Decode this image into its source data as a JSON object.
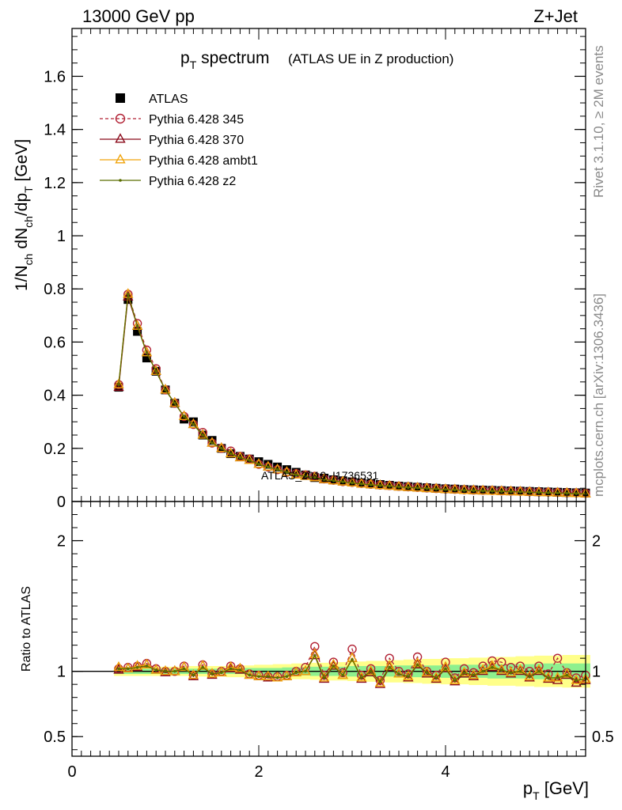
{
  "header": {
    "left": "13000 GeV pp",
    "right": "Z+Jet"
  },
  "side_labels": {
    "rivet": "Rivet 3.1.10, ≥ 2M events",
    "mcplots": "mcplots.cern.ch [arXiv:1306.3436]"
  },
  "watermark": "ATLAS_2019_I1736531",
  "chart_data": [
    {
      "type": "line",
      "panel": "main",
      "title_main": "p",
      "title_sub": "T",
      "title_rest": " spectrum",
      "title_note": "(ATLAS UE in Z production)",
      "ylabel_parts": {
        "a": "1/N",
        "a_sub": "ch",
        "b": " dN",
        "b_sub": "ch",
        "c": "/dp",
        "c_sub": "T",
        "d": " [GeV]"
      },
      "xlim": [
        0,
        5.5
      ],
      "ylim": [
        0,
        1.78
      ],
      "yticks": [
        0,
        0.2,
        0.4,
        0.6,
        0.8,
        1,
        1.2,
        1.4,
        1.6
      ],
      "ytick_labels": [
        "0",
        "0.2",
        "0.4",
        "0.6",
        "0.8",
        "1",
        "1.2",
        "1.4",
        "1.6"
      ],
      "x": [
        0.5,
        0.6,
        0.7,
        0.8,
        0.9,
        1.0,
        1.1,
        1.2,
        1.3,
        1.4,
        1.5,
        1.6,
        1.7,
        1.8,
        1.9,
        2.0,
        2.1,
        2.2,
        2.3,
        2.4,
        2.5,
        2.6,
        2.7,
        2.8,
        2.9,
        3.0,
        3.1,
        3.2,
        3.3,
        3.4,
        3.5,
        3.6,
        3.7,
        3.8,
        3.9,
        4.0,
        4.1,
        4.2,
        4.3,
        4.4,
        4.5,
        4.6,
        4.7,
        4.8,
        4.9,
        5.0,
        5.1,
        5.2,
        5.3,
        5.4,
        5.5
      ],
      "series": [
        {
          "name": "ATLAS",
          "marker": "square",
          "color": "#000000",
          "values": [
            0.43,
            0.76,
            0.64,
            0.54,
            0.49,
            0.42,
            0.37,
            0.31,
            0.3,
            0.25,
            0.23,
            0.2,
            0.18,
            0.17,
            0.16,
            0.15,
            0.14,
            0.13,
            0.12,
            0.11,
            0.1,
            0.09,
            0.088,
            0.082,
            0.078,
            0.074,
            0.07,
            0.067,
            0.064,
            0.061,
            0.058,
            0.056,
            0.054,
            0.052,
            0.05,
            0.048,
            0.047,
            0.045,
            0.044,
            0.043,
            0.042,
            0.041,
            0.04,
            0.039,
            0.038,
            0.037,
            0.036,
            0.035,
            0.034,
            0.033,
            0.032
          ]
        },
        {
          "name": "Pythia 6.428 345",
          "marker": "circle",
          "color": "#b22235",
          "dash": true,
          "values": [
            0.44,
            0.78,
            0.67,
            0.57,
            0.5,
            0.42,
            0.37,
            0.32,
            0.29,
            0.26,
            0.22,
            0.2,
            0.19,
            0.17,
            0.16,
            0.14,
            0.13,
            0.12,
            0.11,
            0.105,
            0.1,
            0.095,
            0.085,
            0.08,
            0.075,
            0.072,
            0.068,
            0.065,
            0.062,
            0.06,
            0.057,
            0.055,
            0.053,
            0.051,
            0.049,
            0.047,
            0.046,
            0.044,
            0.043,
            0.042,
            0.041,
            0.04,
            0.039,
            0.038,
            0.037,
            0.036,
            0.035,
            0.034,
            0.033,
            0.032,
            0.031
          ]
        },
        {
          "name": "Pythia 6.428 370",
          "marker": "triangle",
          "color": "#8b0a1a",
          "values": [
            0.43,
            0.77,
            0.66,
            0.56,
            0.49,
            0.42,
            0.37,
            0.32,
            0.29,
            0.25,
            0.22,
            0.2,
            0.18,
            0.165,
            0.155,
            0.14,
            0.13,
            0.12,
            0.11,
            0.1,
            0.095,
            0.09,
            0.082,
            0.078,
            0.074,
            0.07,
            0.066,
            0.063,
            0.06,
            0.058,
            0.055,
            0.053,
            0.051,
            0.049,
            0.047,
            0.045,
            0.044,
            0.042,
            0.041,
            0.04,
            0.039,
            0.038,
            0.037,
            0.036,
            0.035,
            0.034,
            0.033,
            0.032,
            0.031,
            0.03,
            0.029
          ]
        },
        {
          "name": "Pythia 6.428 ambt1",
          "marker": "triangle",
          "color": "#f0a30a",
          "values": [
            0.44,
            0.78,
            0.66,
            0.56,
            0.49,
            0.42,
            0.37,
            0.32,
            0.29,
            0.25,
            0.22,
            0.2,
            0.18,
            0.165,
            0.155,
            0.14,
            0.13,
            0.12,
            0.11,
            0.1,
            0.095,
            0.09,
            0.083,
            0.078,
            0.074,
            0.07,
            0.066,
            0.063,
            0.06,
            0.058,
            0.055,
            0.053,
            0.051,
            0.049,
            0.047,
            0.045,
            0.044,
            0.042,
            0.041,
            0.04,
            0.039,
            0.038,
            0.037,
            0.036,
            0.035,
            0.034,
            0.033,
            0.032,
            0.031,
            0.03,
            0.029
          ]
        },
        {
          "name": "Pythia 6.428 z2",
          "marker": "dot",
          "color": "#5a6e00",
          "values": [
            0.44,
            0.78,
            0.66,
            0.56,
            0.49,
            0.42,
            0.37,
            0.32,
            0.29,
            0.25,
            0.22,
            0.2,
            0.18,
            0.165,
            0.155,
            0.14,
            0.13,
            0.12,
            0.11,
            0.1,
            0.095,
            0.09,
            0.083,
            0.078,
            0.074,
            0.07,
            0.066,
            0.063,
            0.06,
            0.058,
            0.055,
            0.053,
            0.051,
            0.049,
            0.047,
            0.045,
            0.044,
            0.042,
            0.041,
            0.04,
            0.039,
            0.038,
            0.037,
            0.036,
            0.035,
            0.034,
            0.033,
            0.032,
            0.031,
            0.03,
            0.029
          ]
        }
      ]
    },
    {
      "type": "line",
      "panel": "ratio",
      "ylabel": "Ratio to ATLAS",
      "xlabel_main": "p",
      "xlabel_sub": "T",
      "xlabel_rest": " [GeV]",
      "xlim": [
        0,
        5.5
      ],
      "ylim": [
        0.35,
        2.3
      ],
      "xticks": [
        0,
        2,
        4
      ],
      "xtick_labels": [
        "0",
        "2",
        "4"
      ],
      "yticks": [
        0.5,
        1,
        2
      ],
      "ytick_labels": [
        "0.5",
        "1",
        "2"
      ],
      "band_stat": [
        0.02,
        0.02,
        0.02,
        0.02,
        0.02,
        0.02,
        0.02,
        0.02,
        0.02,
        0.02,
        0.02,
        0.02,
        0.02,
        0.02,
        0.025,
        0.025,
        0.025,
        0.025,
        0.03,
        0.03,
        0.03,
        0.035,
        0.035,
        0.035,
        0.035,
        0.04,
        0.04,
        0.04,
        0.04,
        0.04,
        0.045,
        0.045,
        0.045,
        0.045,
        0.045,
        0.05,
        0.05,
        0.05,
        0.05,
        0.05,
        0.055,
        0.055,
        0.055,
        0.055,
        0.055,
        0.06,
        0.06,
        0.06,
        0.06,
        0.06,
        0.06
      ],
      "band_total": [
        0.035,
        0.035,
        0.035,
        0.035,
        0.035,
        0.035,
        0.035,
        0.035,
        0.04,
        0.04,
        0.04,
        0.04,
        0.045,
        0.045,
        0.045,
        0.05,
        0.05,
        0.055,
        0.055,
        0.06,
        0.06,
        0.065,
        0.065,
        0.07,
        0.07,
        0.075,
        0.075,
        0.08,
        0.08,
        0.085,
        0.085,
        0.09,
        0.09,
        0.095,
        0.095,
        0.1,
        0.1,
        0.1,
        0.105,
        0.105,
        0.11,
        0.11,
        0.11,
        0.115,
        0.115,
        0.12,
        0.12,
        0.12,
        0.125,
        0.125,
        0.125
      ],
      "ratios": [
        [
          1.02,
          1.03,
          1.04,
          1.06,
          1.02,
          1.0,
          1.0,
          1.04,
          0.97,
          1.05,
          0.98,
          1.0,
          1.04,
          1.02,
          0.98,
          0.97,
          0.96,
          0.96,
          0.97,
          1.0,
          1.03,
          1.19,
          0.97,
          1.07,
          0.99,
          1.17,
          0.97,
          1.02,
          0.93,
          1.1,
          1.0,
          0.98,
          1.11,
          1.0,
          0.97,
          1.07,
          0.95,
          1.02,
          0.99,
          1.04,
          1.08,
          1.07,
          1.03,
          1.04,
          1.0,
          1.04,
          0.98,
          1.1,
          0.99,
          0.95,
          0.97
        ],
        [
          1.01,
          1.02,
          1.03,
          1.05,
          1.01,
          0.99,
          1.0,
          1.03,
          0.96,
          1.04,
          0.97,
          0.99,
          1.02,
          1.01,
          0.97,
          0.96,
          0.95,
          0.95,
          0.96,
          0.99,
          1.0,
          1.12,
          0.94,
          1.04,
          0.97,
          1.1,
          0.94,
          0.99,
          0.9,
          1.03,
          0.98,
          0.95,
          1.05,
          0.98,
          0.94,
          1.02,
          0.92,
          0.98,
          0.96,
          1.0,
          1.03,
          1.0,
          0.98,
          1.0,
          0.95,
          1.0,
          0.94,
          0.93,
          0.97,
          0.91,
          0.93
        ],
        [
          1.03,
          1.02,
          1.04,
          1.05,
          1.01,
          1.0,
          1.0,
          1.03,
          0.97,
          1.04,
          0.98,
          0.99,
          1.03,
          1.02,
          0.97,
          0.96,
          0.96,
          0.95,
          0.96,
          0.99,
          1.0,
          1.13,
          0.95,
          1.05,
          0.97,
          1.1,
          0.95,
          1.0,
          0.91,
          1.04,
          0.98,
          0.96,
          1.06,
          0.99,
          0.95,
          1.03,
          0.93,
          0.99,
          0.97,
          1.01,
          1.04,
          1.01,
          0.99,
          1.01,
          0.96,
          1.01,
          0.95,
          0.95,
          0.98,
          0.93,
          0.94
        ],
        [
          1.02,
          1.02,
          1.03,
          1.04,
          1.01,
          1.0,
          1.0,
          1.02,
          0.97,
          1.03,
          0.98,
          0.99,
          1.02,
          1.01,
          0.97,
          0.96,
          0.96,
          0.95,
          0.96,
          0.99,
          1.0,
          1.12,
          0.95,
          1.04,
          0.97,
          1.09,
          0.95,
          1.0,
          0.92,
          1.03,
          0.98,
          0.96,
          1.05,
          0.99,
          0.95,
          1.02,
          0.93,
          0.99,
          0.97,
          1.0,
          1.03,
          1.01,
          0.99,
          1.0,
          0.96,
          1.0,
          0.95,
          0.95,
          0.97,
          0.93,
          0.94
        ]
      ]
    }
  ]
}
